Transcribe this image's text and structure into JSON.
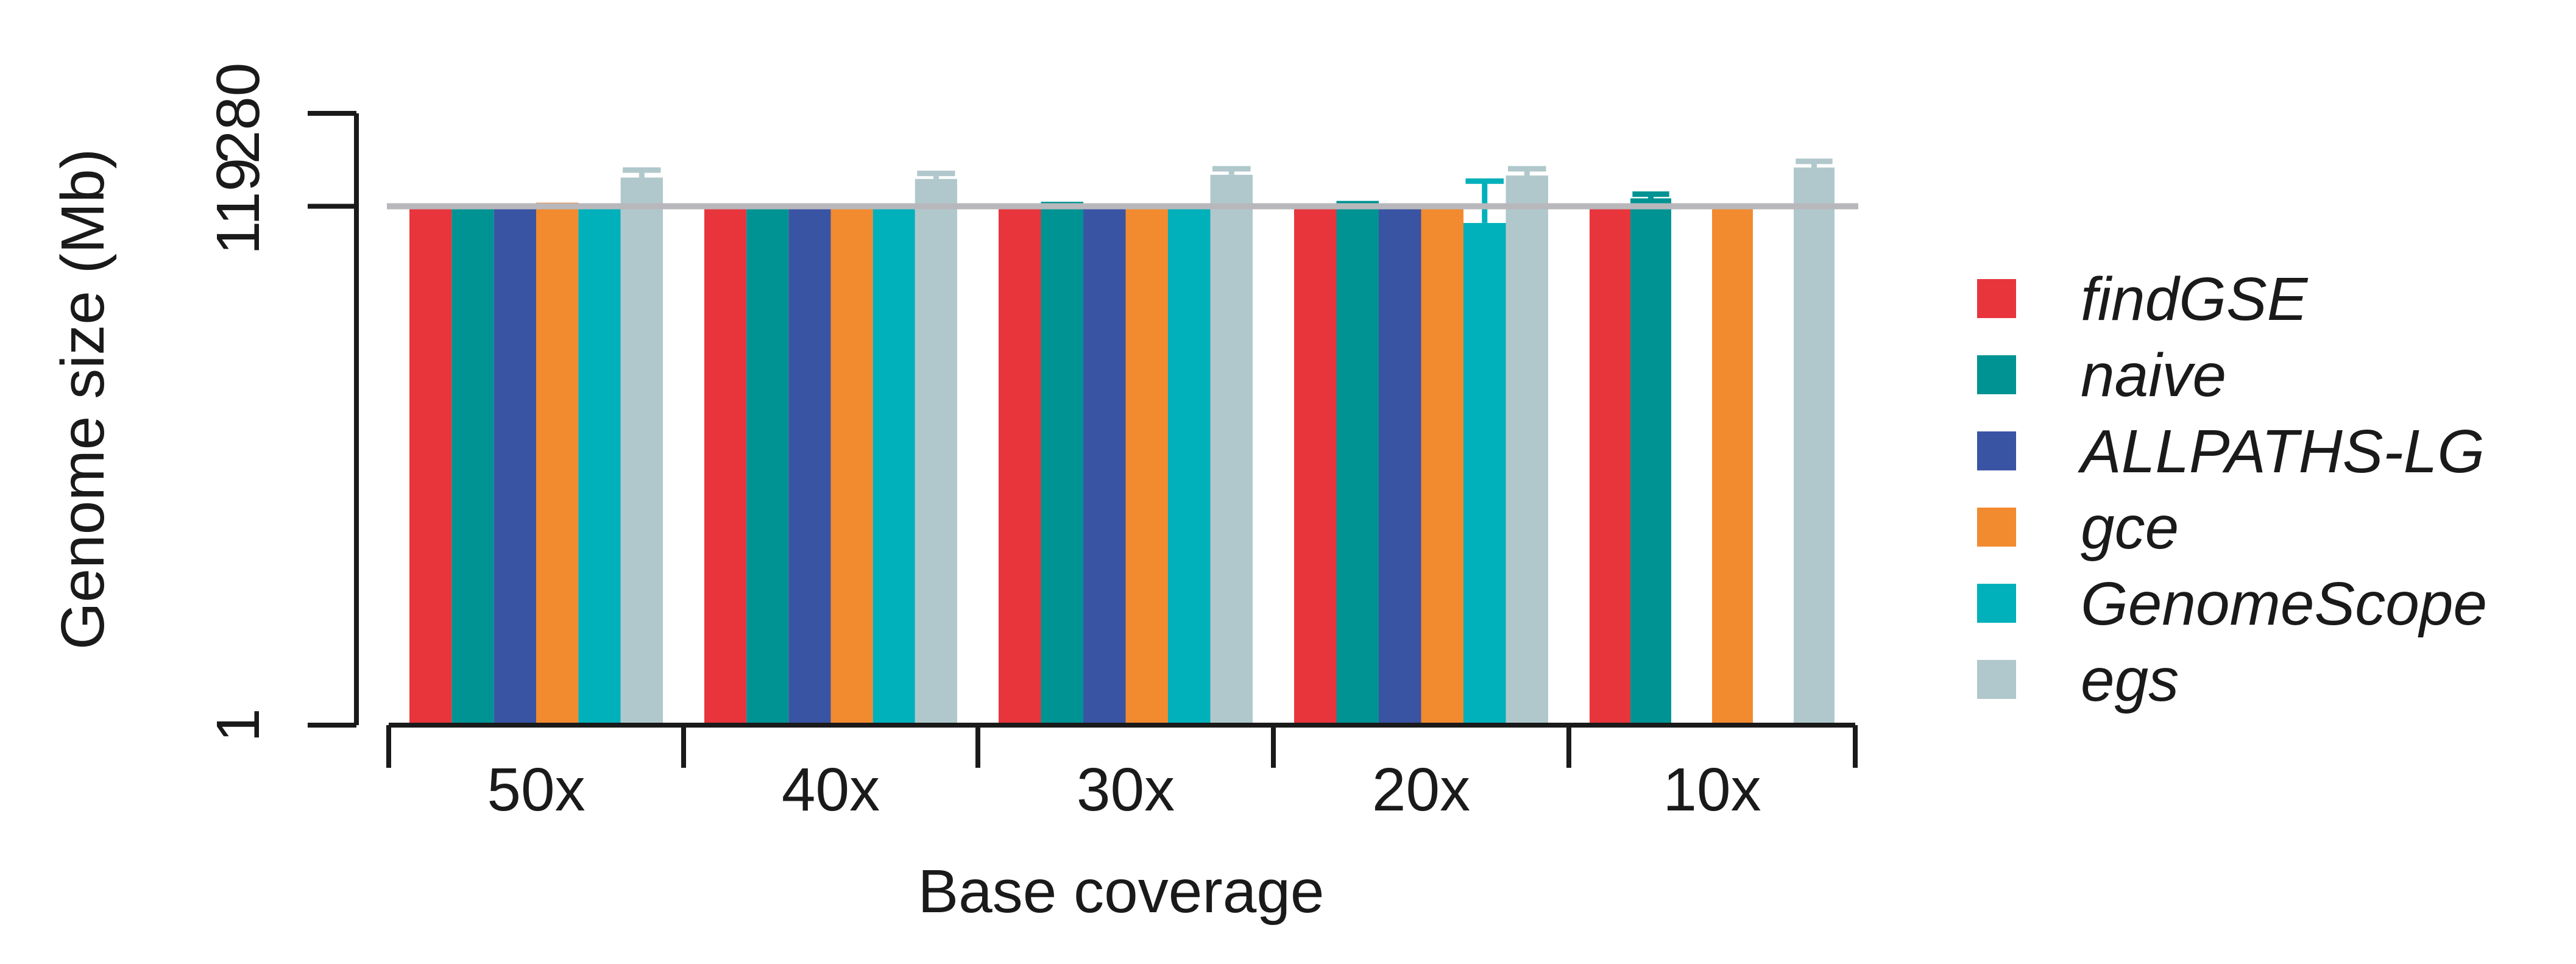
{
  "chart_data": {
    "type": "bar",
    "xlabel": "Base coverage",
    "ylabel": "Genome size (Mb)",
    "ylim": [
      1,
      280
    ],
    "yscale": "log",
    "yticks": [
      1,
      119,
      280
    ],
    "ytick_labels": [
      "1",
      "119",
      "280"
    ],
    "reference_line": 119,
    "categories": [
      "50x",
      "40x",
      "30x",
      "20x",
      "10x"
    ],
    "legend_position": "right",
    "series": [
      {
        "name": "findGSE",
        "color": "#e8353c",
        "values": [
          119,
          119,
          119,
          119,
          122
        ],
        "errors": [
          null,
          null,
          null,
          null,
          null
        ]
      },
      {
        "name": "naive",
        "color": "#009393",
        "values": [
          122,
          120,
          124,
          125,
          128
        ],
        "errors": [
          null,
          null,
          null,
          null,
          133
        ]
      },
      {
        "name": "ALLPATHS-LG",
        "color": "#3a54a4",
        "values": [
          119,
          119,
          120,
          119,
          1
        ],
        "errors": [
          null,
          null,
          null,
          null,
          null
        ]
      },
      {
        "name": "gce",
        "color": "#f28a30",
        "values": [
          123,
          122,
          119,
          119,
          120
        ],
        "errors": [
          null,
          null,
          null,
          null,
          null
        ]
      },
      {
        "name": "GenomeScope",
        "color": "#00b0ba",
        "values": [
          119,
          119,
          119,
          102,
          null
        ],
        "errors": [
          null,
          null,
          null,
          150,
          null
        ]
      },
      {
        "name": "egs",
        "color": "#b0c8cb",
        "values": [
          155,
          153,
          159,
          158,
          170
        ],
        "errors": [
          166,
          161,
          168,
          168,
          180
        ]
      }
    ]
  }
}
